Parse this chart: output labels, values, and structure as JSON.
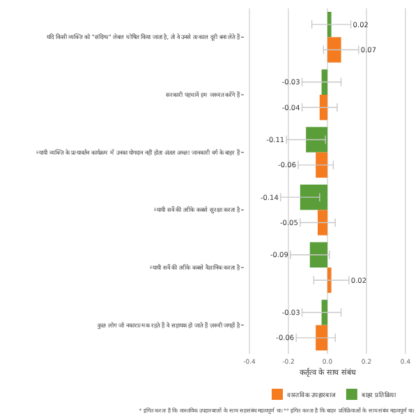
{
  "chart_data": {
    "type": "bar",
    "orientation": "horizontal",
    "xlabel": "कर्तृत्व के साथ संबंध",
    "categories": [
      "यदि किसी व्यक्ति को \"संदिग्ध\" लेबल घोषित किया जाता है, तो वे उनसे तत्काल दूरी बना लेते हैं",
      "सरकारी पहचानें हम जरूरत करेंगे हैं",
      "न्यायी व्यक्ति के प्रत्यावर्तन कार्यक्रम में उनका योगदान नहीं होता अंततः अच्छा जानकारी वर्ग के बाहर हैं",
      "न्यायी सर्वे की तरीके कबसे सुरक्षा करता है",
      "न्यायी सर्वे की तरीके कबसे वैज्ञानिक करता है",
      "कुछ लोग जो नकारात्मक रहते हैं वे सहायक हो जाते हैं ज़रूरी जगहों है"
    ],
    "series": [
      {
        "name": "बाहर प्रतिक्रिया",
        "color": "#5a9e3a",
        "values": [
          0.02,
          -0.03,
          -0.11,
          -0.14,
          -0.09,
          -0.03
        ],
        "errors": [
          0.1,
          0.1,
          0.1,
          0.1,
          0.1,
          0.1
        ]
      },
      {
        "name": "वास्तविक उपहारबाज",
        "color": "#f47b20",
        "values": [
          0.07,
          -0.04,
          -0.06,
          -0.05,
          0.02,
          -0.06
        ],
        "errors": [
          0.09,
          0.09,
          0.09,
          0.09,
          0.09,
          0.1
        ]
      }
    ],
    "xlim": [
      -0.4,
      0.4
    ],
    "xticks": [
      -0.4,
      -0.2,
      {
        "value": 0,
        "label": "0.0"
      },
      0.2,
      0.4
    ],
    "grid": "x",
    "legend": "bottom",
    "data_labels": true,
    "annotations": [
      "* इंगित करता है कि वास्तविक उपहारबाजों के साथ सहसंबंध महत्वपूर्ण था। ** इंगित करता है कि बाहर प्रतिक्रियाओं के साथ संबंध महत्वपूर्ण था।"
    ]
  }
}
